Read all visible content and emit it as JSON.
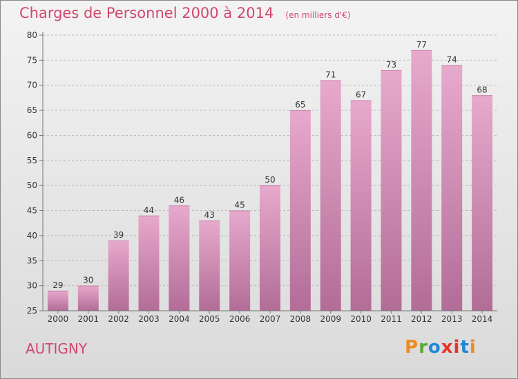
{
  "header": {
    "title": "Charges de Personnel 2000 à 2014",
    "subtitle": "(en milliers d'€)"
  },
  "footer": {
    "commune": "AUTIGNY",
    "brand": "Proxiti"
  },
  "colors": {
    "accent": "#d2476f",
    "bar_top": "#e7a9cc",
    "bar_bottom": "#b26d97",
    "logo": [
      "#f08a1c",
      "#5aa832",
      "#1e88d6",
      "#e6332a",
      "#e6332a",
      "#1e88d6",
      "#f08a1c"
    ]
  },
  "chart_data": {
    "type": "bar",
    "title": "Charges de Personnel 2000 à 2014",
    "subtitle": "(en milliers d'€)",
    "xlabel": "",
    "ylabel": "",
    "categories": [
      "2000",
      "2001",
      "2002",
      "2003",
      "2004",
      "2005",
      "2006",
      "2007",
      "2008",
      "2009",
      "2010",
      "2011",
      "2012",
      "2013",
      "2014"
    ],
    "values": [
      29,
      30,
      39,
      44,
      46,
      43,
      45,
      50,
      65,
      71,
      67,
      73,
      77,
      74,
      68
    ],
    "ylim": [
      25,
      80
    ],
    "yticks": [
      25,
      30,
      35,
      40,
      45,
      50,
      55,
      60,
      65,
      70,
      75,
      80
    ],
    "grid": "horizontal dashed"
  }
}
